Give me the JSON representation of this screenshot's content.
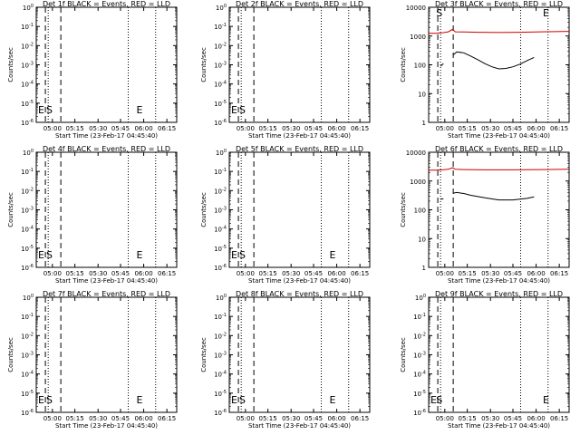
{
  "xlabel": "Start Time (23-Feb-17 04:45:40)",
  "ylabel": "Counts/sec",
  "x_ticks": [
    "05:00",
    "05:15",
    "05:30",
    "05:45",
    "06:00",
    "06:15"
  ],
  "colors": {
    "events": "#000000",
    "lld": "#cc0000",
    "axes": "#000000"
  },
  "chart_data": [
    {
      "type": "line",
      "title": "Det 1f BLACK = Events, RED = LLD",
      "y_ticks": [
        "10^-6",
        "10^-5",
        "10^-4",
        "10^-3",
        "10^-2",
        "10^-1",
        "10^0"
      ],
      "markers": [
        {
          "label": "E",
          "x": 0
        },
        {
          "label": "S",
          "x": 0.058
        },
        {
          "label": "E",
          "x": 0.7
        }
      ],
      "dashed": [
        0.065,
        0.175
      ],
      "dotted": [
        0.085,
        0.655,
        0.85
      ],
      "series": []
    },
    {
      "type": "line",
      "title": "Det 2f BLACK = Events, RED = LLD",
      "y_ticks": [
        "10^-6",
        "10^-5",
        "10^-4",
        "10^-3",
        "10^-2",
        "10^-1",
        "10^0"
      ],
      "markers": [
        {
          "label": "E",
          "x": 0
        },
        {
          "label": "S",
          "x": 0.058
        }
      ],
      "dashed": [
        0.065,
        0.175
      ],
      "dotted": [
        0.085,
        0.655,
        0.85
      ],
      "series": []
    },
    {
      "type": "line",
      "title": "Det 3f BLACK = Events, RED = LLD",
      "y_ticks": [
        "1",
        "10",
        "100",
        "1000",
        "10000"
      ],
      "ylim": [
        1,
        10000
      ],
      "markers": [
        {
          "label": "S",
          "x": 0.04
        },
        {
          "label": "E",
          "x": 0.8
        }
      ],
      "dashed": [
        0.065,
        0.175
      ],
      "dotted": [
        0.085,
        0.655,
        0.85
      ],
      "series": [
        {
          "color": "lld",
          "points": [
            [
              0.0,
              1250
            ],
            [
              0.05,
              1250
            ],
            [
              0.1,
              1300
            ],
            [
              0.14,
              1400
            ],
            [
              0.17,
              1700
            ],
            [
              0.19,
              1400
            ],
            [
              0.25,
              1380
            ],
            [
              0.35,
              1350
            ],
            [
              0.5,
              1320
            ],
            [
              0.65,
              1350
            ],
            [
              0.8,
              1400
            ],
            [
              1.0,
              1450
            ]
          ]
        },
        {
          "color": "events",
          "points": [
            [
              0.085,
              90
            ],
            [
              0.095,
              100
            ],
            [
              0.105,
              110
            ]
          ]
        },
        {
          "color": "events",
          "points": [
            [
              0.175,
              220
            ],
            [
              0.2,
              280
            ],
            [
              0.25,
              260
            ],
            [
              0.3,
              200
            ],
            [
              0.35,
              150
            ],
            [
              0.4,
              110
            ],
            [
              0.45,
              85
            ],
            [
              0.5,
              72
            ],
            [
              0.55,
              75
            ],
            [
              0.6,
              85
            ],
            [
              0.65,
              105
            ],
            [
              0.7,
              140
            ],
            [
              0.75,
              180
            ]
          ]
        }
      ]
    },
    {
      "type": "line",
      "title": "Det 4f BLACK = Events, RED = LLD",
      "y_ticks": [
        "10^-6",
        "10^-5",
        "10^-4",
        "10^-3",
        "10^-2",
        "10^-1",
        "10^0"
      ],
      "markers": [
        {
          "label": "E",
          "x": 0
        },
        {
          "label": "S",
          "x": 0.058
        },
        {
          "label": "E",
          "x": 0.7
        }
      ],
      "dashed": [
        0.065,
        0.175
      ],
      "dotted": [
        0.085,
        0.655,
        0.85
      ],
      "series": []
    },
    {
      "type": "line",
      "title": "Det 5f BLACK = Events, RED = LLD",
      "y_ticks": [
        "10^-6",
        "10^-5",
        "10^-4",
        "10^-3",
        "10^-2",
        "10^-1",
        "10^0"
      ],
      "markers": [
        {
          "label": "E",
          "x": 0
        },
        {
          "label": "S",
          "x": 0.058
        },
        {
          "label": "E",
          "x": 0.7
        }
      ],
      "dashed": [
        0.065,
        0.175
      ],
      "dotted": [
        0.085,
        0.655,
        0.85
      ],
      "series": []
    },
    {
      "type": "line",
      "title": "Det 6f BLACK = Events, RED = LLD",
      "y_ticks": [
        "1",
        "10",
        "100",
        "1000",
        "10000"
      ],
      "ylim": [
        1,
        10000
      ],
      "markers": [],
      "dashed": [
        0.065,
        0.175
      ],
      "dotted": [
        0.085,
        0.655,
        0.85
      ],
      "series": [
        {
          "color": "lld",
          "points": [
            [
              0.0,
              2400
            ],
            [
              0.05,
              2400
            ],
            [
              0.1,
              2450
            ],
            [
              0.14,
              2550
            ],
            [
              0.17,
              2900
            ],
            [
              0.19,
              2550
            ],
            [
              0.25,
              2500
            ],
            [
              0.4,
              2450
            ],
            [
              0.6,
              2450
            ],
            [
              0.8,
              2500
            ],
            [
              1.0,
              2550
            ]
          ]
        },
        {
          "color": "events",
          "points": [
            [
              0.085,
              230
            ],
            [
              0.095,
              240
            ],
            [
              0.105,
              240
            ]
          ]
        },
        {
          "color": "events",
          "points": [
            [
              0.175,
              380
            ],
            [
              0.2,
              400
            ],
            [
              0.25,
              370
            ],
            [
              0.3,
              320
            ],
            [
              0.4,
              260
            ],
            [
              0.5,
              220
            ],
            [
              0.6,
              220
            ],
            [
              0.7,
              250
            ],
            [
              0.75,
              280
            ]
          ]
        }
      ]
    },
    {
      "type": "line",
      "title": "Det 7f BLACK = Events, RED = LLD",
      "y_ticks": [
        "10^-6",
        "10^-5",
        "10^-4",
        "10^-3",
        "10^-2",
        "10^-1",
        "10^0"
      ],
      "markers": [
        {
          "label": "E",
          "x": 0
        },
        {
          "label": "S",
          "x": 0.058
        },
        {
          "label": "E",
          "x": 0.7
        }
      ],
      "dashed": [
        0.065,
        0.175
      ],
      "dotted": [
        0.085,
        0.655,
        0.85
      ],
      "series": []
    },
    {
      "type": "line",
      "title": "Det 8f BLACK = Events, RED = LLD",
      "y_ticks": [
        "10^-6",
        "10^-5",
        "10^-4",
        "10^-3",
        "10^-2",
        "10^-1",
        "10^0"
      ],
      "markers": [
        {
          "label": "E",
          "x": 0
        },
        {
          "label": "S",
          "x": 0.058
        },
        {
          "label": "E",
          "x": 0.7
        }
      ],
      "dashed": [
        0.065,
        0.175
      ],
      "dotted": [
        0.085,
        0.655,
        0.85
      ],
      "series": []
    },
    {
      "type": "line",
      "title": "Det 9f BLACK = Events, RED = LLD",
      "y_ticks": [
        "10^-6",
        "10^-5",
        "10^-4",
        "10^-3",
        "10^-2",
        "10^-1",
        "10^0"
      ],
      "markers": [
        {
          "label": "E",
          "x": 0
        },
        {
          "label": "S",
          "x": 0.04
        },
        {
          "label": "E",
          "x": 0.8
        }
      ],
      "dashed": [
        0.065,
        0.175
      ],
      "dotted": [
        0.085,
        0.655,
        0.85
      ],
      "series": []
    }
  ]
}
